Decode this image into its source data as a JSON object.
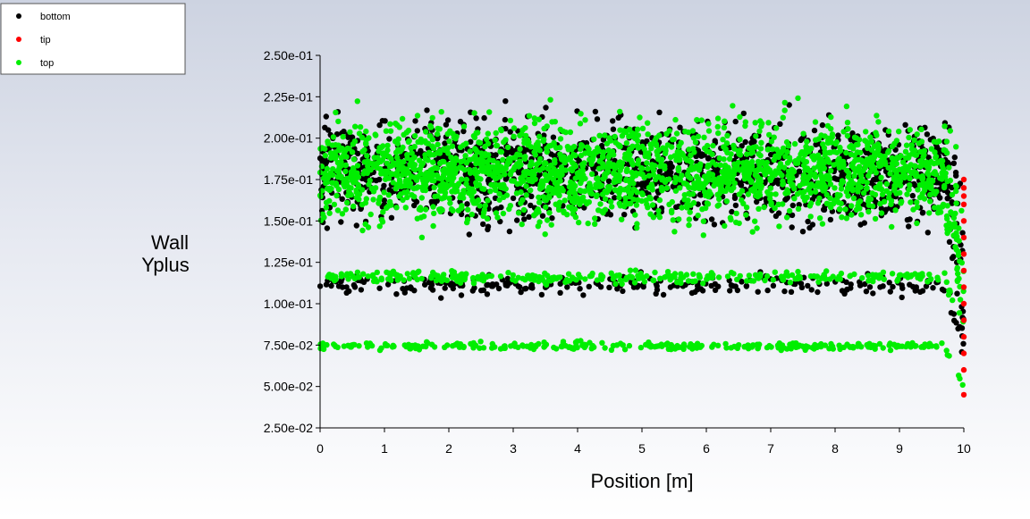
{
  "chart_data": {
    "type": "scatter",
    "title": "",
    "xlabel": "Position [m]",
    "ylabel": [
      "Wall",
      "Yplus"
    ],
    "xlim": [
      0,
      10
    ],
    "ylim": [
      0.025,
      0.25
    ],
    "x_ticks": [
      0,
      1,
      2,
      3,
      4,
      5,
      6,
      7,
      8,
      9,
      10
    ],
    "x_tick_labels": [
      "0",
      "1",
      "2",
      "3",
      "4",
      "5",
      "6",
      "7",
      "8",
      "9",
      "10"
    ],
    "y_ticks": [
      0.025,
      0.05,
      0.075,
      0.1,
      0.125,
      0.15,
      0.175,
      0.2,
      0.225,
      0.25
    ],
    "y_tick_labels": [
      "2.50e-02",
      "5.00e-02",
      "7.50e-02",
      "1.00e-01",
      "1.25e-01",
      "1.50e-01",
      "1.75e-01",
      "2.00e-01",
      "2.25e-01",
      "2.50e-01"
    ],
    "grid": false,
    "legend_position": "top-left",
    "series": [
      {
        "name": "bottom",
        "color": "#000000",
        "bands": [
          {
            "x_range": [
              0,
              10
            ],
            "y_center": 0.18,
            "y_spread": 0.04
          },
          {
            "x_range": [
              0,
              10
            ],
            "y_center": 0.111,
            "y_spread": 0.008
          }
        ]
      },
      {
        "name": "tip",
        "color": "#ff0000",
        "points": [
          [
            10,
            0.175
          ],
          [
            10,
            0.17
          ],
          [
            10,
            0.165
          ],
          [
            10,
            0.16
          ],
          [
            10,
            0.15
          ],
          [
            10,
            0.14
          ],
          [
            10,
            0.13
          ],
          [
            10,
            0.12
          ],
          [
            10,
            0.11
          ],
          [
            10,
            0.1
          ],
          [
            10,
            0.09
          ],
          [
            10,
            0.08
          ],
          [
            10,
            0.07
          ],
          [
            10,
            0.06
          ],
          [
            10,
            0.045
          ]
        ]
      },
      {
        "name": "top",
        "color": "#00ee00",
        "bands": [
          {
            "x_range": [
              0,
              10
            ],
            "y_center": 0.18,
            "y_spread": 0.04
          },
          {
            "x_range": [
              0,
              10
            ],
            "y_center": 0.116,
            "y_spread": 0.005
          },
          {
            "x_range": [
              0,
              10
            ],
            "y_center": 0.0745,
            "y_spread": 0.003
          }
        ]
      }
    ]
  }
}
